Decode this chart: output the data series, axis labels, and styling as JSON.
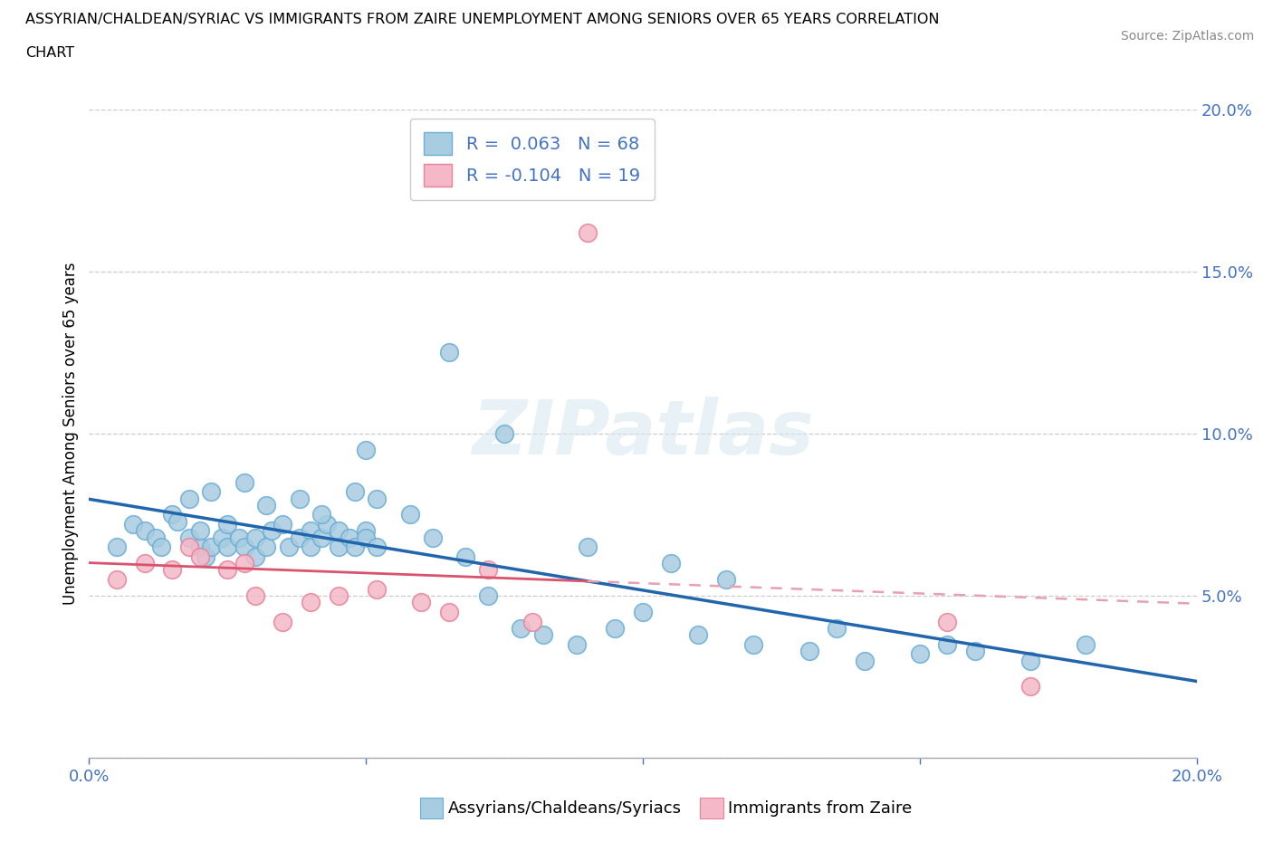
{
  "title_line1": "ASSYRIAN/CHALDEAN/SYRIAC VS IMMIGRANTS FROM ZAIRE UNEMPLOYMENT AMONG SENIORS OVER 65 YEARS CORRELATION",
  "title_line2": "CHART",
  "source": "Source: ZipAtlas.com",
  "ylabel": "Unemployment Among Seniors over 65 years",
  "color_blue": "#a8cce0",
  "color_blue_edge": "#6aaed6",
  "color_pink": "#f4b8c8",
  "color_pink_edge": "#e8829a",
  "color_blue_line": "#2166ac",
  "color_pink_solid": "#d9536f",
  "color_pink_dash": "#e8a0b0",
  "axis_tick_color": "#4472c4",
  "legend_text_color": "#4472c4",
  "watermark_text": "ZIPatlas",
  "label_blue": "Assyrians/Chaldeans/Syriacs",
  "label_pink": "Immigrants from Zaire",
  "blue_x": [
    0.005,
    0.008,
    0.01,
    0.012,
    0.013,
    0.015,
    0.016,
    0.018,
    0.02,
    0.02,
    0.021,
    0.022,
    0.024,
    0.025,
    0.025,
    0.027,
    0.028,
    0.03,
    0.03,
    0.032,
    0.033,
    0.035,
    0.036,
    0.038,
    0.04,
    0.04,
    0.042,
    0.043,
    0.045,
    0.045,
    0.047,
    0.048,
    0.05,
    0.05,
    0.052,
    0.018,
    0.022,
    0.028,
    0.032,
    0.038,
    0.042,
    0.048,
    0.052,
    0.058,
    0.062,
    0.068,
    0.072,
    0.078,
    0.082,
    0.088,
    0.095,
    0.1,
    0.11,
    0.12,
    0.13,
    0.14,
    0.15,
    0.16,
    0.17,
    0.18,
    0.05,
    0.065,
    0.075,
    0.09,
    0.105,
    0.115,
    0.135,
    0.155
  ],
  "blue_y": [
    0.065,
    0.072,
    0.07,
    0.068,
    0.065,
    0.075,
    0.073,
    0.068,
    0.065,
    0.07,
    0.062,
    0.065,
    0.068,
    0.065,
    0.072,
    0.068,
    0.065,
    0.062,
    0.068,
    0.065,
    0.07,
    0.072,
    0.065,
    0.068,
    0.07,
    0.065,
    0.068,
    0.072,
    0.07,
    0.065,
    0.068,
    0.065,
    0.07,
    0.068,
    0.065,
    0.08,
    0.082,
    0.085,
    0.078,
    0.08,
    0.075,
    0.082,
    0.08,
    0.075,
    0.068,
    0.062,
    0.05,
    0.04,
    0.038,
    0.035,
    0.04,
    0.045,
    0.038,
    0.035,
    0.033,
    0.03,
    0.032,
    0.033,
    0.03,
    0.035,
    0.095,
    0.125,
    0.1,
    0.065,
    0.06,
    0.055,
    0.04,
    0.035
  ],
  "pink_x": [
    0.005,
    0.01,
    0.015,
    0.018,
    0.02,
    0.025,
    0.028,
    0.03,
    0.035,
    0.04,
    0.045,
    0.052,
    0.06,
    0.065,
    0.072,
    0.08,
    0.09,
    0.155,
    0.17
  ],
  "pink_y": [
    0.055,
    0.06,
    0.058,
    0.065,
    0.062,
    0.058,
    0.06,
    0.05,
    0.042,
    0.048,
    0.05,
    0.052,
    0.048,
    0.045,
    0.058,
    0.042,
    0.162,
    0.042,
    0.022
  ]
}
